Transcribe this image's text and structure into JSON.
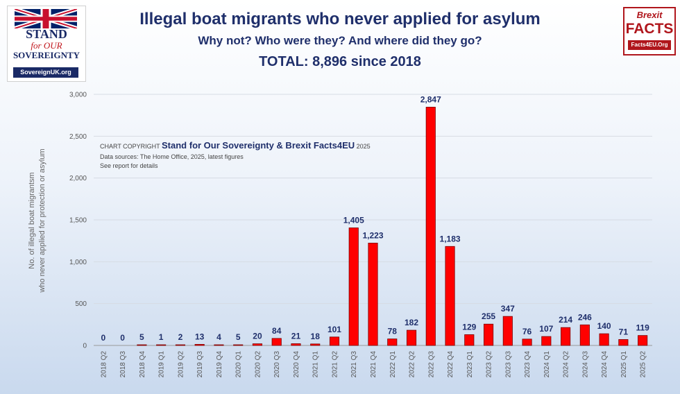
{
  "chart_data": {
    "type": "bar",
    "title": "Illegal boat migrants who never applied for asylum",
    "subtitle": "Why not? Who were they? And where did they go?",
    "total_line": "TOTAL: 8,896 since 2018",
    "ylabel_line1": "No. of illegal boat migrantsm",
    "ylabel_line2": "who never applied for protection or asylum",
    "ylim": [
      0,
      3000
    ],
    "yticks": [
      "0",
      "500",
      "1,000",
      "1,500",
      "2,000",
      "2,500",
      "3,000"
    ],
    "ytick_values": [
      0,
      500,
      1000,
      1500,
      2000,
      2500,
      3000
    ],
    "grid": true,
    "bar_color": "#ff0000",
    "categories": [
      "2018 Q2",
      "2018 Q3",
      "2018 Q4",
      "2019 Q1",
      "2019 Q2",
      "2019 Q3",
      "2019 Q4",
      "2020 Q1",
      "2020 Q2",
      "2020 Q3",
      "2020 Q4",
      "2021 Q1",
      "2021 Q2",
      "2021 Q3",
      "2021 Q4",
      "2022 Q1",
      "2022 Q2",
      "2022 Q3",
      "2022 Q4",
      "2023 Q1",
      "2023 Q2",
      "2023 Q3",
      "2023 Q4",
      "2024 Q1",
      "2024 Q2",
      "2024 Q3",
      "2024 Q4",
      "2025 Q1",
      "2025 Q2"
    ],
    "values": [
      0,
      0,
      5,
      1,
      2,
      13,
      4,
      5,
      20,
      84,
      21,
      18,
      101,
      1405,
      1223,
      78,
      182,
      2847,
      1183,
      129,
      255,
      347,
      76,
      107,
      214,
      246,
      140,
      71,
      119
    ],
    "value_labels": [
      "0",
      "0",
      "5",
      "1",
      "2",
      "13",
      "4",
      "5",
      "20",
      "84",
      "21",
      "18",
      "101",
      "1,405",
      "1,223",
      "78",
      "182",
      "2,847",
      "1,183",
      "129",
      "255",
      "347",
      "76",
      "107",
      "214",
      "246",
      "140",
      "71",
      "119"
    ]
  },
  "annotation": {
    "copyright_prefix": "CHART COPYRIGHT ",
    "copyright_org": "Stand for Our Sovereignty & Brexit Facts4EU",
    "copyright_year": " 2025",
    "sources": "Data sources: The Home Office, 2025, latest figures",
    "see_report": "See report for details"
  },
  "logo_left": {
    "line1": "STAND",
    "line2": "for OUR",
    "line3": "SOVEREIGNTY",
    "url": "SovereignUK.org"
  },
  "logo_right": {
    "line1": "Brexit",
    "line2": "FACTS",
    "url": "Facts4EU.Org"
  }
}
